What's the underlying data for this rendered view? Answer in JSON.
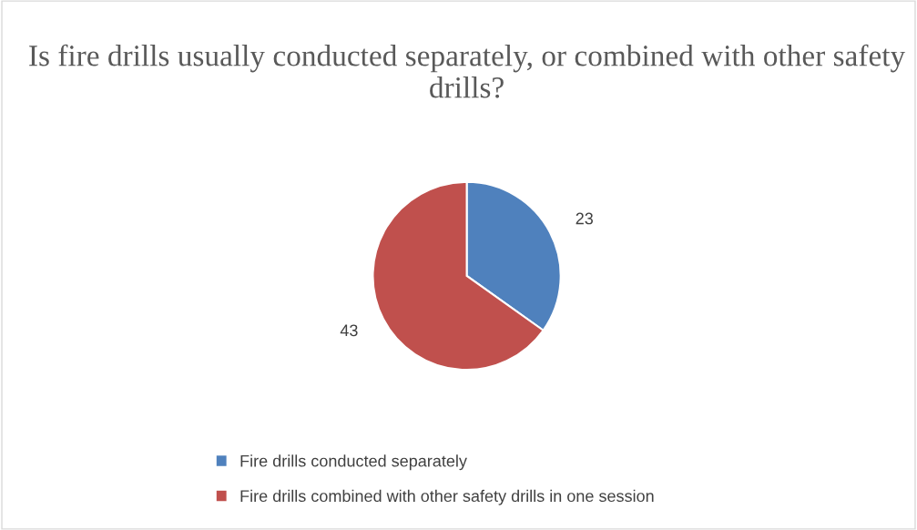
{
  "chart_data": {
    "type": "pie",
    "title": "Is fire drills usually conducted separately, or combined with other safety drills?",
    "categories": [
      "Fire drills conducted separately",
      "Fire drills combined with other safety drills in one session"
    ],
    "values": [
      23,
      43
    ],
    "colors": [
      "#4f81bd",
      "#c0504d"
    ],
    "data_labels": true,
    "legend": "bottom"
  }
}
